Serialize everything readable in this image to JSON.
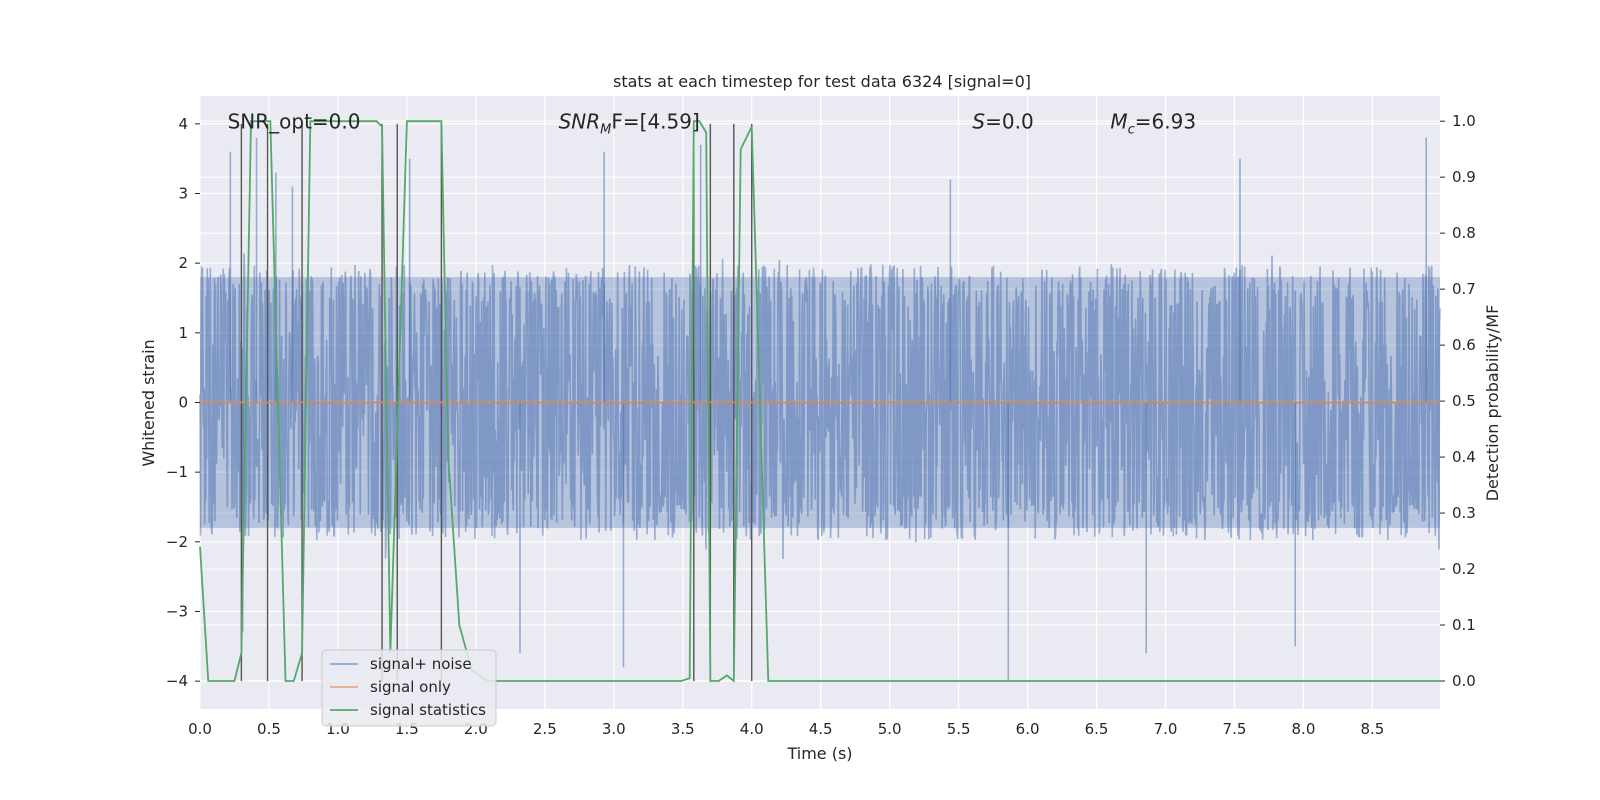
{
  "chart_data": {
    "type": "line",
    "title": "stats at each timestep for test data 6324 [signal=0]",
    "xlabel": "Time (s)",
    "ylabel_left": "Whitened strain",
    "ylabel_right": "Detection probability/MF",
    "xlim": [
      0.0,
      8.99
    ],
    "ylim_left": [
      -4.4,
      4.4
    ],
    "ylim_right": [
      -0.05,
      1.045
    ],
    "x_ticks": [
      "0.0",
      "0.5",
      "1.0",
      "1.5",
      "2.0",
      "2.5",
      "3.0",
      "3.5",
      "4.0",
      "4.5",
      "5.0",
      "5.5",
      "6.0",
      "6.5",
      "7.0",
      "7.5",
      "8.0",
      "8.5"
    ],
    "y_ticks_left": [
      "−4",
      "−3",
      "−2",
      "−1",
      "0",
      "1",
      "2",
      "3",
      "4"
    ],
    "y_ticks_right": [
      "0.0",
      "0.1",
      "0.2",
      "0.3",
      "0.4",
      "0.5",
      "0.6",
      "0.7",
      "0.8",
      "0.9",
      "1.0"
    ],
    "grid": true,
    "legend_position": "lower-left",
    "annotations": [
      {
        "text": "SNR_opt=0.0",
        "x": 0.2,
        "y": 4.05
      },
      {
        "text_main": "SNR",
        "text_sub": "M",
        "text_rest": "F=[4.59]",
        "x": 2.6,
        "y": 4.05
      },
      {
        "text_main": "S",
        "text_rest": "=0.0",
        "x": 5.6,
        "y": 4.05
      },
      {
        "text_main": "M",
        "text_sub": "c",
        "text_rest": "=6.93",
        "x": 6.6,
        "y": 4.05
      }
    ],
    "series": [
      {
        "name": "signal+ noise",
        "color": "#4c72b0",
        "style": "noise",
        "envelope_left": 1.8,
        "peak_values_left": [
          {
            "x": 0.22,
            "y": 3.6
          },
          {
            "x": 0.41,
            "y": 3.8
          },
          {
            "x": 0.55,
            "y": 3.3
          },
          {
            "x": 0.67,
            "y": 3.1
          },
          {
            "x": 1.52,
            "y": 3.5
          },
          {
            "x": 2.93,
            "y": 3.6
          },
          {
            "x": 3.63,
            "y": 3.7
          },
          {
            "x": 5.44,
            "y": 3.2
          },
          {
            "x": 7.54,
            "y": 3.5
          },
          {
            "x": 8.89,
            "y": 3.8
          },
          {
            "x": 5.86,
            "y": -4.0
          },
          {
            "x": 3.07,
            "y": -3.8
          },
          {
            "x": 6.86,
            "y": -3.6
          },
          {
            "x": 0.31,
            "y": -3.3
          },
          {
            "x": 7.94,
            "y": -3.5
          },
          {
            "x": 2.32,
            "y": -3.6
          }
        ]
      },
      {
        "name": "signal only",
        "color": "#dd8452",
        "style": "line",
        "x": [
          0.0,
          8.99
        ],
        "y": [
          0.0,
          0.0
        ]
      },
      {
        "name": "signal statistics",
        "color": "#55a868",
        "style": "line",
        "axis": "right",
        "x": [
          0.0,
          0.06,
          0.25,
          0.3,
          0.37,
          0.43,
          0.49,
          0.51,
          0.62,
          0.68,
          0.74,
          0.8,
          1.28,
          1.32,
          1.38,
          1.5,
          1.75,
          1.8,
          1.88,
          1.97,
          2.08,
          2.35,
          3.49,
          3.55,
          3.58,
          3.62,
          3.67,
          3.7,
          3.76,
          3.82,
          3.87,
          3.92,
          4.0,
          4.12,
          8.99
        ],
        "y": [
          0.24,
          0.0,
          0.0,
          0.05,
          1.0,
          1.0,
          1.0,
          1.0,
          0.0,
          0.0,
          0.05,
          1.0,
          1.0,
          0.99,
          0.05,
          1.0,
          1.0,
          0.4,
          0.1,
          0.02,
          0.0,
          0.0,
          0.0,
          0.005,
          1.0,
          1.0,
          0.98,
          0.0,
          0.0,
          0.01,
          0.0,
          0.95,
          0.99,
          0.0,
          0.0
        ]
      }
    ],
    "vertical_markers_x": [
      0.3,
      0.49,
      0.74,
      1.32,
      1.43,
      1.75,
      3.58,
      3.7,
      3.87,
      4.0
    ]
  }
}
